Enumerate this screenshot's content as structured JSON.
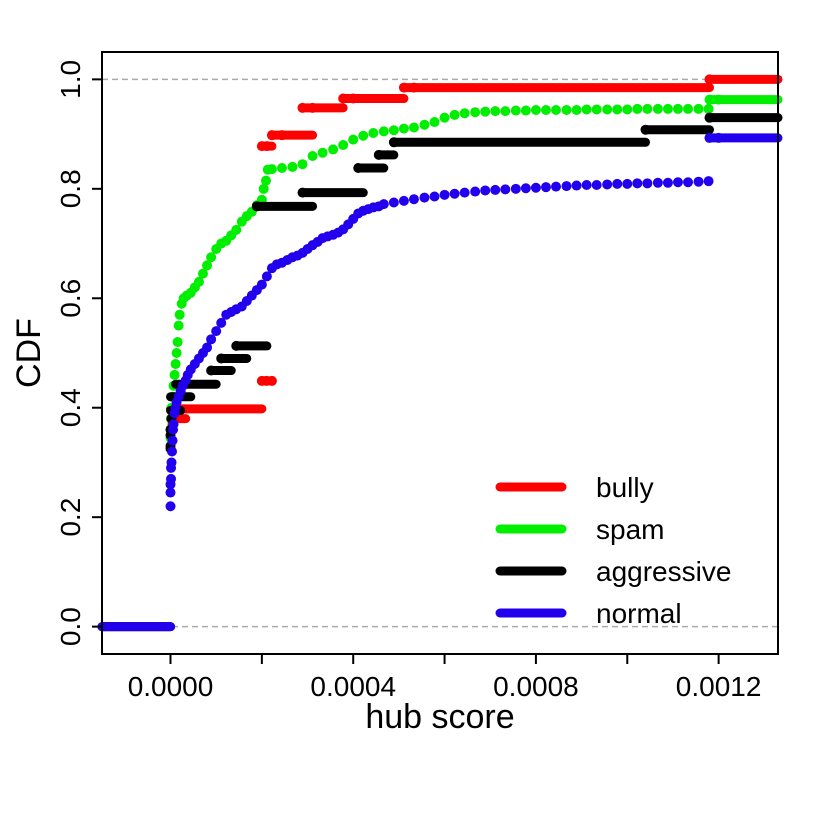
{
  "chart_data": {
    "type": "line",
    "title": "",
    "xlabel": "hub score",
    "ylabel": "CDF",
    "xlim": [
      -0.00015,
      0.00133
    ],
    "ylim": [
      -0.05,
      1.05
    ],
    "xticks": [
      0.0,
      0.0002,
      0.0004,
      0.0006,
      0.0008,
      0.001,
      0.0012
    ],
    "xtick_labels": [
      "0.0000",
      "",
      "0.0004",
      "",
      "0.0008",
      "",
      "0.0012"
    ],
    "yticks": [
      0.0,
      0.2,
      0.4,
      0.6,
      0.8,
      1.0
    ],
    "ytick_labels": [
      "0.0",
      "0.2",
      "0.4",
      "0.6",
      "0.8",
      "1.0"
    ],
    "reference_lines": [
      0.0,
      1.0
    ],
    "grid": false,
    "legend_position": "bottom-right",
    "series": [
      {
        "name": "bully",
        "color": "#ff0000",
        "steps": [
          [
            -0.00015,
            0.0,
            0.0
          ],
          [
            0.0,
            3.33e-05,
            0.38
          ],
          [
            0.0,
            0.0002,
            0.398
          ],
          [
            0.0002,
            0.000222,
            0.449
          ],
          [
            0.0002,
            0.000222,
            0.878
          ],
          [
            0.000222,
            0.000311,
            0.898
          ],
          [
            0.000289,
            0.000378,
            0.948
          ],
          [
            0.000378,
            0.000511,
            0.965
          ],
          [
            0.000511,
            0.00118,
            0.985
          ],
          [
            0.00118,
            0.00133,
            1.0
          ]
        ],
        "points": [
          [
            2.2e-06,
            0.36
          ],
          [
            4.4e-06,
            0.37
          ],
          [
            0.0002,
            0.449
          ],
          [
            0.00021,
            0.449
          ],
          [
            0.000222,
            0.449
          ],
          [
            0.0002,
            0.878
          ],
          [
            0.000211,
            0.878
          ],
          [
            0.000222,
            0.898
          ],
          [
            0.000244,
            0.898
          ],
          [
            0.000289,
            0.948
          ],
          [
            0.000311,
            0.948
          ],
          [
            0.000378,
            0.965
          ],
          [
            0.0004,
            0.965
          ],
          [
            0.000511,
            0.985
          ],
          [
            0.000533,
            0.985
          ],
          [
            0.00118,
            1.0
          ]
        ]
      },
      {
        "name": "spam",
        "color": "#00ee00",
        "steps": [
          [
            -0.00015,
            0.0,
            0.0
          ],
          [
            0.00118,
            0.00133,
            0.963
          ]
        ],
        "points": [
          [
            0.0,
            0.345
          ],
          [
            0.0,
            0.36
          ],
          [
            1.1e-06,
            0.38
          ],
          [
            2.2e-06,
            0.4
          ],
          [
            4.4e-06,
            0.42
          ],
          [
            6.7e-06,
            0.44
          ],
          [
            8.9e-06,
            0.46
          ],
          [
            1.11e-05,
            0.48
          ],
          [
            1.33e-05,
            0.5
          ],
          [
            1.56e-05,
            0.52
          ],
          [
            1.78e-05,
            0.55
          ],
          [
            2e-05,
            0.57
          ],
          [
            2.44e-05,
            0.59
          ],
          [
            2.89e-05,
            0.6
          ],
          [
            3.56e-05,
            0.605
          ],
          [
            4.44e-05,
            0.61
          ],
          [
            5.33e-05,
            0.62
          ],
          [
            6.22e-05,
            0.63
          ],
          [
            7.11e-05,
            0.645
          ],
          [
            8e-05,
            0.66
          ],
          [
            8.89e-05,
            0.675
          ],
          [
            0.0001,
            0.69
          ],
          [
            0.000111,
            0.7
          ],
          [
            0.000122,
            0.705
          ],
          [
            0.000133,
            0.715
          ],
          [
            0.000144,
            0.725
          ],
          [
            0.000156,
            0.74
          ],
          [
            0.000167,
            0.75
          ],
          [
            0.000178,
            0.758
          ],
          [
            0.000189,
            0.77
          ],
          [
            0.0002,
            0.78
          ],
          [
            0.000204,
            0.8
          ],
          [
            0.000209,
            0.815
          ],
          [
            0.000213,
            0.835
          ],
          [
            0.000222,
            0.836
          ],
          [
            0.000244,
            0.838
          ],
          [
            0.000267,
            0.84
          ],
          [
            0.000289,
            0.845
          ],
          [
            0.000311,
            0.86
          ],
          [
            0.000333,
            0.866
          ],
          [
            0.000356,
            0.872
          ],
          [
            0.000378,
            0.88
          ],
          [
            0.0004,
            0.89
          ],
          [
            0.000422,
            0.897
          ],
          [
            0.000444,
            0.902
          ],
          [
            0.000467,
            0.905
          ],
          [
            0.000489,
            0.907
          ],
          [
            0.000511,
            0.91
          ],
          [
            0.000533,
            0.912
          ],
          [
            0.000556,
            0.917
          ],
          [
            0.000578,
            0.922
          ],
          [
            0.0006,
            0.93
          ],
          [
            0.000622,
            0.935
          ],
          [
            0.000644,
            0.938
          ],
          [
            0.000667,
            0.94
          ],
          [
            0.000689,
            0.941
          ],
          [
            0.000711,
            0.942
          ],
          [
            0.000733,
            0.942
          ],
          [
            0.000756,
            0.943
          ],
          [
            0.000778,
            0.943
          ],
          [
            0.0008,
            0.944
          ],
          [
            0.000822,
            0.944
          ],
          [
            0.000844,
            0.944
          ],
          [
            0.000867,
            0.944
          ],
          [
            0.000889,
            0.944
          ],
          [
            0.000911,
            0.945
          ],
          [
            0.000933,
            0.945
          ],
          [
            0.000956,
            0.945
          ],
          [
            0.000978,
            0.945
          ],
          [
            0.001,
            0.945
          ],
          [
            0.001022,
            0.946
          ],
          [
            0.001044,
            0.946
          ],
          [
            0.001067,
            0.946
          ],
          [
            0.001089,
            0.946
          ],
          [
            0.001111,
            0.946
          ],
          [
            0.001133,
            0.946
          ],
          [
            0.001156,
            0.946
          ],
          [
            0.001178,
            0.946
          ],
          [
            0.00118,
            0.963
          ],
          [
            0.0012,
            0.963
          ]
        ]
      },
      {
        "name": "aggressive",
        "color": "#000000",
        "steps": [
          [
            -0.00015,
            0.0,
            0.0
          ],
          [
            0.0,
            2.22e-05,
            0.395
          ],
          [
            0.0,
            4.44e-05,
            0.42
          ],
          [
            1.11e-05,
            0.0001,
            0.443
          ],
          [
            8.89e-05,
            0.000133,
            0.468
          ],
          [
            0.000111,
            0.000167,
            0.49
          ],
          [
            0.000144,
            0.000211,
            0.513
          ],
          [
            0.000189,
            0.000311,
            0.768
          ],
          [
            0.000289,
            0.000422,
            0.793
          ],
          [
            0.000411,
            0.000467,
            0.838
          ],
          [
            0.000456,
            0.000489,
            0.862
          ],
          [
            0.000489,
            0.00104,
            0.885
          ],
          [
            0.00104,
            0.00118,
            0.908
          ],
          [
            0.00118,
            0.00133,
            0.93
          ]
        ],
        "points": [
          [
            0.0,
            0.325
          ],
          [
            0.0,
            0.33
          ],
          [
            0.0,
            0.35
          ],
          [
            0.0,
            0.36
          ],
          [
            2.2e-06,
            0.38
          ],
          [
            8.89e-05,
            0.468
          ],
          [
            0.000111,
            0.49
          ],
          [
            0.000144,
            0.513
          ],
          [
            0.000189,
            0.768
          ],
          [
            0.000289,
            0.793
          ],
          [
            0.000411,
            0.838
          ],
          [
            0.000456,
            0.862
          ],
          [
            0.000489,
            0.885
          ],
          [
            0.00104,
            0.908
          ],
          [
            0.00118,
            0.93
          ]
        ]
      },
      {
        "name": "normal",
        "color": "#2200ee",
        "steps": [
          [
            -0.00015,
            0.0,
            0.0
          ],
          [
            0.00118,
            0.00133,
            0.893
          ]
        ],
        "points": [
          [
            0.0,
            0.22
          ],
          [
            0.0,
            0.245
          ],
          [
            0.0,
            0.26
          ],
          [
            1.1e-06,
            0.27
          ],
          [
            1.1e-06,
            0.29
          ],
          [
            2.2e-06,
            0.3
          ],
          [
            3.3e-06,
            0.32
          ],
          [
            4.4e-06,
            0.34
          ],
          [
            5.6e-06,
            0.36
          ],
          [
            6.7e-06,
            0.37
          ],
          [
            8.9e-06,
            0.39
          ],
          [
            1.11e-05,
            0.4
          ],
          [
            1.33e-05,
            0.41
          ],
          [
            1.78e-05,
            0.42
          ],
          [
            2.22e-05,
            0.43
          ],
          [
            2.67e-05,
            0.44
          ],
          [
            3.33e-05,
            0.45
          ],
          [
            3.78e-05,
            0.46
          ],
          [
            4.44e-05,
            0.47
          ],
          [
            5.33e-05,
            0.48
          ],
          [
            6.22e-05,
            0.49
          ],
          [
            7.11e-05,
            0.5
          ],
          [
            8e-05,
            0.51
          ],
          [
            8.89e-05,
            0.525
          ],
          [
            0.0001,
            0.54
          ],
          [
            0.000111,
            0.555
          ],
          [
            0.000122,
            0.57
          ],
          [
            0.000133,
            0.575
          ],
          [
            0.000144,
            0.58
          ],
          [
            0.000156,
            0.585
          ],
          [
            0.000167,
            0.595
          ],
          [
            0.000178,
            0.605
          ],
          [
            0.000189,
            0.615
          ],
          [
            0.0002,
            0.625
          ],
          [
            0.000211,
            0.64
          ],
          [
            0.000222,
            0.655
          ],
          [
            0.000233,
            0.662
          ],
          [
            0.000244,
            0.665
          ],
          [
            0.000256,
            0.67
          ],
          [
            0.000267,
            0.675
          ],
          [
            0.000278,
            0.678
          ],
          [
            0.000289,
            0.683
          ],
          [
            0.0003,
            0.69
          ],
          [
            0.000311,
            0.697
          ],
          [
            0.000322,
            0.703
          ],
          [
            0.000333,
            0.71
          ],
          [
            0.000344,
            0.713
          ],
          [
            0.000356,
            0.716
          ],
          [
            0.000367,
            0.72
          ],
          [
            0.000378,
            0.726
          ],
          [
            0.000389,
            0.735
          ],
          [
            0.0004,
            0.745
          ],
          [
            0.000411,
            0.755
          ],
          [
            0.000422,
            0.76
          ],
          [
            0.000433,
            0.763
          ],
          [
            0.000444,
            0.766
          ],
          [
            0.000456,
            0.768
          ],
          [
            0.000467,
            0.772
          ],
          [
            0.000489,
            0.775
          ],
          [
            0.000511,
            0.778
          ],
          [
            0.000533,
            0.781
          ],
          [
            0.000556,
            0.784
          ],
          [
            0.000578,
            0.786
          ],
          [
            0.0006,
            0.789
          ],
          [
            0.000622,
            0.791
          ],
          [
            0.000644,
            0.793
          ],
          [
            0.000667,
            0.795
          ],
          [
            0.000689,
            0.797
          ],
          [
            0.000711,
            0.798
          ],
          [
            0.000733,
            0.799
          ],
          [
            0.000756,
            0.8
          ],
          [
            0.000778,
            0.801
          ],
          [
            0.0008,
            0.802
          ],
          [
            0.000822,
            0.803
          ],
          [
            0.000844,
            0.804
          ],
          [
            0.000867,
            0.805
          ],
          [
            0.000889,
            0.806
          ],
          [
            0.000911,
            0.807
          ],
          [
            0.000933,
            0.807
          ],
          [
            0.000956,
            0.808
          ],
          [
            0.000978,
            0.809
          ],
          [
            0.001,
            0.809
          ],
          [
            0.001022,
            0.81
          ],
          [
            0.001044,
            0.81
          ],
          [
            0.001067,
            0.811
          ],
          [
            0.001089,
            0.811
          ],
          [
            0.001111,
            0.812
          ],
          [
            0.001133,
            0.812
          ],
          [
            0.001156,
            0.813
          ],
          [
            0.001178,
            0.814
          ],
          [
            0.00118,
            0.893
          ],
          [
            0.0012,
            0.893
          ]
        ]
      }
    ]
  }
}
